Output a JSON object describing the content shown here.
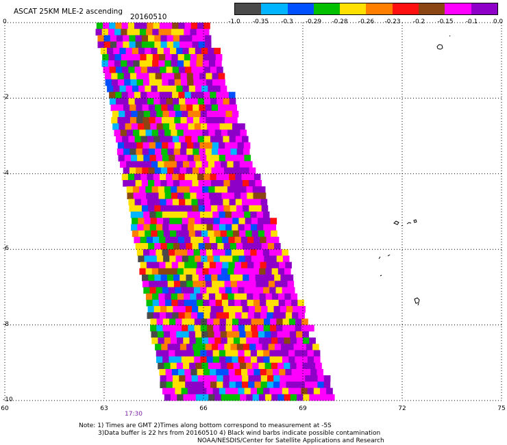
{
  "header": {
    "title": "ASCAT 25KM MLE-2 ascending",
    "date": "20160510"
  },
  "colorbar": {
    "colors": [
      "#4a4a4a",
      "#00b4ff",
      "#0050ff",
      "#00c000",
      "#ffe000",
      "#ff8000",
      "#ff1010",
      "#8b4513",
      "#ff00ff",
      "#8e00c8"
    ],
    "labels": [
      "-1.0",
      "-0.35",
      "-0.3",
      "-0.29",
      "-0.28",
      "-0.26",
      "-0.23",
      "-0.2",
      "-0.15",
      "-0.1",
      "0.0"
    ]
  },
  "axes": {
    "x_ticks": [
      "60",
      "63",
      "66",
      "69",
      "72",
      "75"
    ],
    "y_ticks": [
      "0",
      "-2",
      "-4",
      "-6",
      "-8",
      "-10"
    ],
    "xlim": [
      60,
      75
    ],
    "ylim": [
      -10,
      0
    ]
  },
  "time_label": "17:30",
  "notes": {
    "line1": "Note: 1) Times are GMT 2)Times along bottom correspond to measurement at -5S",
    "line2": "3)Data buffer is 22 hrs from 20160510 4) Black wind barbs indicate possible contamination",
    "credit": "NOAA/NESDIS/Center for Satellite Applications and Research"
  }
}
